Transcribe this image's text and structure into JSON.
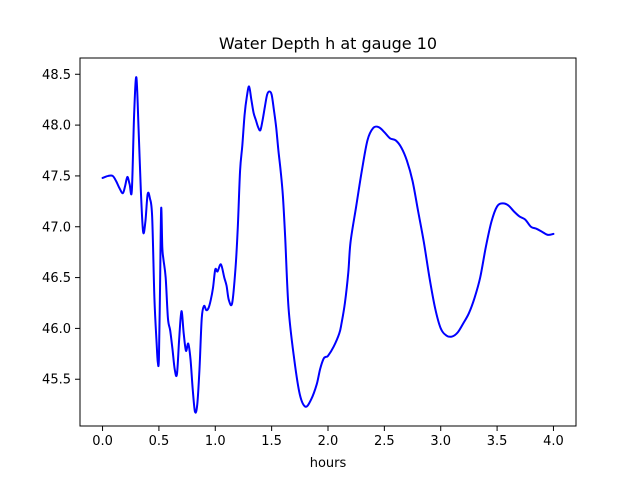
{
  "chart_data": {
    "type": "line",
    "title": "Water Depth h at gauge 10",
    "xlabel": "hours",
    "ylabel": "",
    "xlim": [
      -0.2,
      4.2
    ],
    "ylim": [
      45.04,
      48.66
    ],
    "xticks": [
      0.0,
      0.5,
      1.0,
      1.5,
      2.0,
      2.5,
      3.0,
      3.5,
      4.0
    ],
    "xtick_labels": [
      "0.0",
      "0.5",
      "1.0",
      "1.5",
      "2.0",
      "2.5",
      "3.0",
      "3.5",
      "4.0"
    ],
    "yticks": [
      45.5,
      46.0,
      46.5,
      47.0,
      47.5,
      48.0,
      48.5
    ],
    "ytick_labels": [
      "45.5",
      "46.0",
      "46.5",
      "47.0",
      "47.5",
      "48.0",
      "48.5"
    ],
    "grid": false,
    "series": [
      {
        "color": "#0000ff",
        "x": [
          0.0,
          0.05,
          0.09,
          0.12,
          0.15,
          0.18,
          0.2,
          0.22,
          0.24,
          0.26,
          0.28,
          0.3,
          0.32,
          0.34,
          0.36,
          0.38,
          0.4,
          0.42,
          0.44,
          0.46,
          0.48,
          0.49,
          0.5,
          0.51,
          0.52,
          0.53,
          0.54,
          0.56,
          0.58,
          0.6,
          0.62,
          0.64,
          0.66,
          0.68,
          0.7,
          0.72,
          0.74,
          0.76,
          0.78,
          0.8,
          0.82,
          0.84,
          0.86,
          0.88,
          0.9,
          0.92,
          0.94,
          0.96,
          0.98,
          1.0,
          1.02,
          1.05,
          1.08,
          1.1,
          1.12,
          1.15,
          1.18,
          1.2,
          1.22,
          1.24,
          1.26,
          1.28,
          1.3,
          1.32,
          1.34,
          1.36,
          1.38,
          1.4,
          1.42,
          1.44,
          1.46,
          1.48,
          1.5,
          1.52,
          1.54,
          1.56,
          1.58,
          1.6,
          1.62,
          1.65,
          1.7,
          1.75,
          1.8,
          1.85,
          1.9,
          1.93,
          1.96,
          1.98,
          2.0,
          2.05,
          2.1,
          2.12,
          2.15,
          2.18,
          2.2,
          2.25,
          2.3,
          2.35,
          2.4,
          2.45,
          2.5,
          2.55,
          2.6,
          2.65,
          2.7,
          2.75,
          2.8,
          2.85,
          2.9,
          2.95,
          3.0,
          3.05,
          3.1,
          3.15,
          3.2,
          3.25,
          3.3,
          3.35,
          3.4,
          3.45,
          3.5,
          3.55,
          3.6,
          3.65,
          3.7,
          3.75,
          3.8,
          3.85,
          3.9,
          3.95,
          4.0
        ],
        "y": [
          47.48,
          47.5,
          47.5,
          47.45,
          47.38,
          47.33,
          47.4,
          47.49,
          47.42,
          47.36,
          48.1,
          48.47,
          47.95,
          47.35,
          46.95,
          47.05,
          47.32,
          47.28,
          47.1,
          46.3,
          45.85,
          45.67,
          45.7,
          46.4,
          47.18,
          46.8,
          46.68,
          46.5,
          46.1,
          45.98,
          45.8,
          45.6,
          45.55,
          45.9,
          46.17,
          45.95,
          45.78,
          45.85,
          45.7,
          45.4,
          45.18,
          45.25,
          45.6,
          46.1,
          46.22,
          46.18,
          46.2,
          46.28,
          46.4,
          46.58,
          46.56,
          46.63,
          46.5,
          46.42,
          46.28,
          46.25,
          46.6,
          47.0,
          47.55,
          47.8,
          48.1,
          48.28,
          48.38,
          48.25,
          48.12,
          48.05,
          47.98,
          47.95,
          48.05,
          48.18,
          48.3,
          48.33,
          48.3,
          48.15,
          47.98,
          47.75,
          47.55,
          47.3,
          46.9,
          46.2,
          45.7,
          45.35,
          45.23,
          45.3,
          45.45,
          45.6,
          45.7,
          45.72,
          45.73,
          45.82,
          45.95,
          46.05,
          46.25,
          46.55,
          46.85,
          47.2,
          47.55,
          47.85,
          47.97,
          47.98,
          47.93,
          47.87,
          47.85,
          47.78,
          47.65,
          47.45,
          47.15,
          46.85,
          46.5,
          46.2,
          46.0,
          45.93,
          45.92,
          45.96,
          46.05,
          46.15,
          46.3,
          46.5,
          46.8,
          47.05,
          47.2,
          47.23,
          47.21,
          47.15,
          47.1,
          47.07,
          47.0,
          46.98,
          46.95,
          46.92,
          46.93
        ]
      }
    ]
  }
}
